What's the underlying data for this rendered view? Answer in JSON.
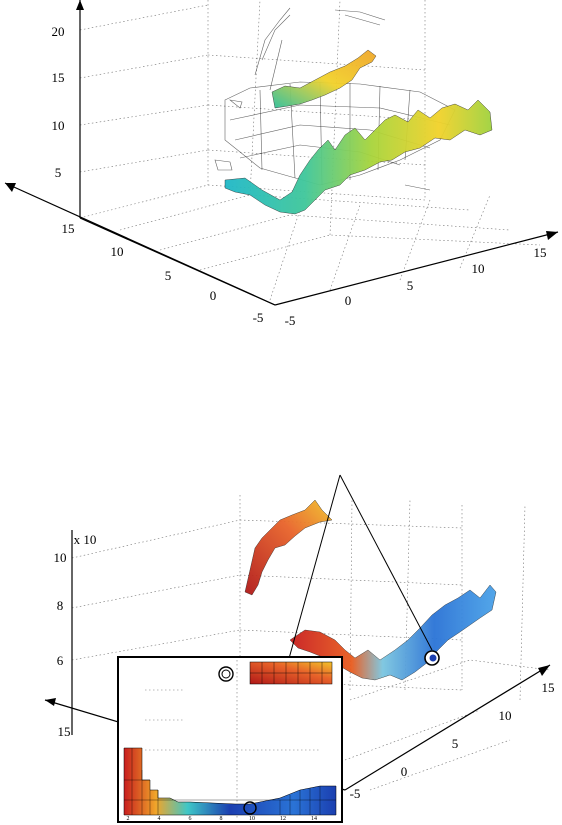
{
  "colors": {
    "ribbon_top": [
      "#1fb8c8",
      "#3fc79a",
      "#a8d43a",
      "#f2d22a",
      "#f0a52a"
    ],
    "ribbon_bottom": [
      "#c81e1e",
      "#e85b1e",
      "#7bc6e0",
      "#2a73d6",
      "#1b3fb0"
    ],
    "inset_frame": "#000000"
  },
  "chart_data": [
    {
      "type": "surface3d",
      "panel": "top",
      "x_ticks": [
        "-5",
        "0",
        "5",
        "10",
        "15"
      ],
      "y_ticks": [
        "-5",
        "0",
        "5",
        "10",
        "15"
      ],
      "z_ticks": [
        "5",
        "10",
        "15",
        "20"
      ],
      "zlim": [
        0,
        22
      ],
      "grid": true
    },
    {
      "type": "surface3d",
      "panel": "bottom",
      "x_ticks": [
        "-5",
        "0",
        "5",
        "10",
        "15"
      ],
      "y_ticks": [
        "15"
      ],
      "z_ticks": [
        "6",
        "8",
        "10"
      ],
      "z_multiplier_label": "x 10",
      "grid": true
    },
    {
      "type": "heatmap",
      "panel": "inset",
      "x_ticks": [
        "2",
        "4",
        "6",
        "8",
        "10",
        "12",
        "14"
      ],
      "grid": true
    }
  ]
}
